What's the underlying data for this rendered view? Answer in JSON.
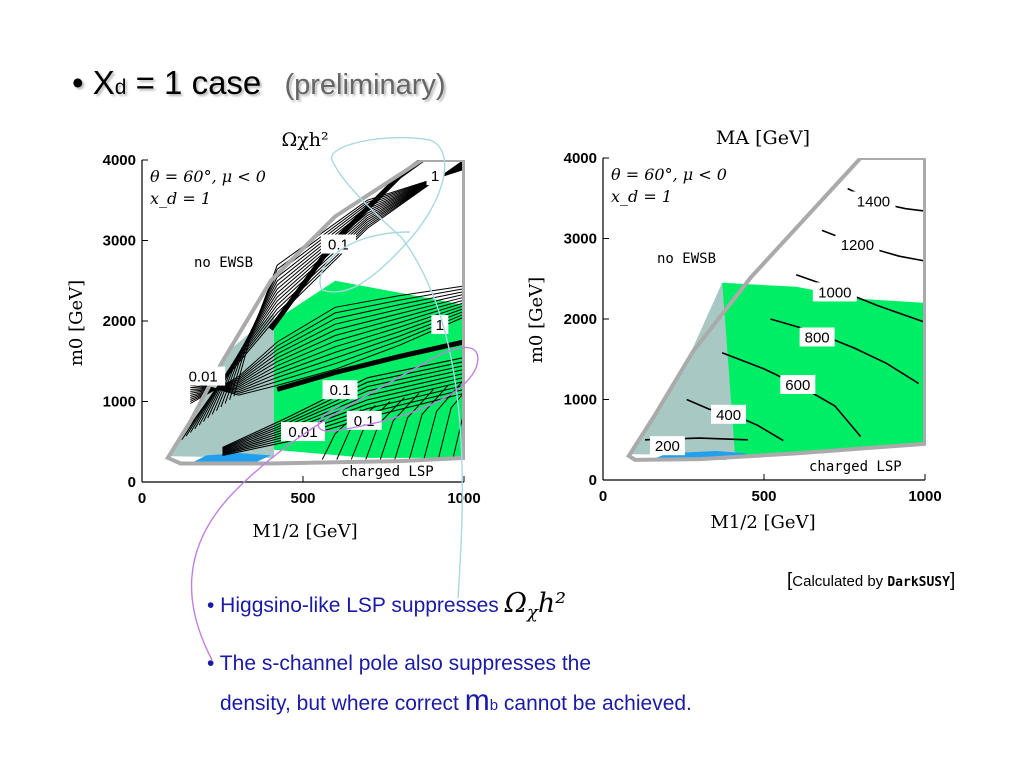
{
  "slide": {
    "bullet_char": "•",
    "title_main": "X",
    "title_sub": "d",
    "title_rest": " = 1 case",
    "title_prelim": "(preliminary)",
    "bullet1_text": "• Higgsino-like LSP suppresses ",
    "bullet1_math": "Ω",
    "bullet1_math_sub": "χ",
    "bullet1_math_rest": "h²",
    "bullet2_line1": "• The s-channel pole also suppresses the",
    "bullet2_line2_a": "density, but where correct ",
    "bullet2_line2_m": "m",
    "bullet2_line2_b": "b",
    "bullet2_line2_c": " cannot be achieved.",
    "calc_note_open": "[",
    "calc_note_text": "Calculated by ",
    "calc_note_code": "DarkSUSY",
    "calc_note_close": "]"
  },
  "colors": {
    "green_region": "#00ee66",
    "grey_region": "#a8c8c4",
    "blue_region": "#22a0ee",
    "boundary_grey": "#aaaaaa",
    "cyan_callout": "#a8d8e0",
    "purple_callout": "#c080e0",
    "bullet_blue": "#1a1aa6"
  },
  "chart_data": [
    {
      "type": "contour",
      "title": "Ωχh²",
      "xlabel": "M1/2 [GeV]",
      "ylabel": "m0 [GeV]",
      "xlim": [
        0,
        1000
      ],
      "ylim": [
        0,
        4000
      ],
      "x_ticks": [
        "0",
        "500",
        "1000"
      ],
      "y_ticks": [
        "0",
        "1000",
        "2000",
        "3000",
        "4000"
      ],
      "annotation_params": "θ = 60°, μ < 0",
      "annotation_xd": "x_d = 1",
      "region_labels": {
        "no_ewsb": "no EWSB",
        "charged_lsp": "charged LSP"
      },
      "contour_labels": [
        {
          "label": "1",
          "x": 910,
          "y": 3800
        },
        {
          "label": "0.1",
          "x": 610,
          "y": 2950
        },
        {
          "label": "1",
          "x": 925,
          "y": 1950
        },
        {
          "label": "0.01",
          "x": 190,
          "y": 1310
        },
        {
          "label": "0.1",
          "x": 615,
          "y": 1140
        },
        {
          "label": "0.1",
          "x": 690,
          "y": 760
        },
        {
          "label": "0.01",
          "x": 500,
          "y": 620
        }
      ],
      "boundary": [
        [
          80,
          300
        ],
        [
          150,
          750
        ],
        [
          250,
          1500
        ],
        [
          400,
          2500
        ],
        [
          600,
          3300
        ],
        [
          870,
          4000
        ],
        [
          1000,
          4000
        ],
        [
          1000,
          300
        ],
        [
          800,
          260
        ],
        [
          400,
          230
        ],
        [
          120,
          230
        ]
      ],
      "green_region": [
        [
          410,
          400
        ],
        [
          410,
          2000
        ],
        [
          600,
          2500
        ],
        [
          800,
          2350
        ],
        [
          1000,
          2200
        ],
        [
          1000,
          300
        ],
        [
          700,
          300
        ]
      ],
      "grey_region": [
        [
          90,
          320
        ],
        [
          160,
          800
        ],
        [
          260,
          1600
        ],
        [
          410,
          2100
        ],
        [
          410,
          300
        ]
      ],
      "blue_region": [
        [
          160,
          250
        ],
        [
          200,
          330
        ],
        [
          300,
          360
        ],
        [
          400,
          330
        ],
        [
          350,
          240
        ]
      ]
    },
    {
      "type": "contour",
      "title": "MA [GeV]",
      "xlabel": "M1/2 [GeV]",
      "ylabel": "m0 [GeV]",
      "xlim": [
        0,
        1000
      ],
      "ylim": [
        0,
        4000
      ],
      "x_ticks": [
        "0",
        "500",
        "1000"
      ],
      "y_ticks": [
        "0",
        "1000",
        "2000",
        "3000",
        "4000"
      ],
      "annotation_params": "θ = 60°, μ < 0",
      "annotation_xd": "x_d = 1",
      "region_labels": {
        "no_ewsb": "no EWSB",
        "charged_lsp": "charged LSP"
      },
      "contour_labels": [
        {
          "label": "1400",
          "x": 840,
          "y": 3460
        },
        {
          "label": "1200",
          "x": 790,
          "y": 2920
        },
        {
          "label": "1000",
          "x": 720,
          "y": 2330
        },
        {
          "label": "800",
          "x": 665,
          "y": 1770
        },
        {
          "label": "600",
          "x": 605,
          "y": 1180
        },
        {
          "label": "400",
          "x": 390,
          "y": 810
        },
        {
          "label": "200",
          "x": 200,
          "y": 420
        }
      ],
      "boundary": [
        [
          80,
          300
        ],
        [
          160,
          800
        ],
        [
          280,
          1600
        ],
        [
          460,
          2520
        ],
        [
          800,
          4000
        ],
        [
          1000,
          4000
        ],
        [
          1000,
          450
        ],
        [
          600,
          330
        ],
        [
          300,
          260
        ],
        [
          100,
          250
        ]
      ],
      "green_region": [
        [
          370,
          2450
        ],
        [
          600,
          2400
        ],
        [
          800,
          2250
        ],
        [
          1000,
          2200
        ],
        [
          1000,
          450
        ],
        [
          600,
          330
        ],
        [
          410,
          300
        ]
      ],
      "grey_region": [
        [
          90,
          320
        ],
        [
          160,
          820
        ],
        [
          280,
          1650
        ],
        [
          370,
          2450
        ],
        [
          410,
          300
        ]
      ],
      "blue_region": [
        [
          150,
          250
        ],
        [
          200,
          330
        ],
        [
          350,
          360
        ],
        [
          450,
          330
        ],
        [
          380,
          250
        ]
      ],
      "contours": [
        {
          "value": 200,
          "points": [
            [
              130,
              500
            ],
            [
              300,
              520
            ],
            [
              450,
              500
            ]
          ]
        },
        {
          "value": 400,
          "points": [
            [
              260,
              1000
            ],
            [
              330,
              880
            ],
            [
              400,
              820
            ],
            [
              480,
              680
            ],
            [
              560,
              490
            ]
          ]
        },
        {
          "value": 600,
          "points": [
            [
              370,
              1580
            ],
            [
              500,
              1380
            ],
            [
              620,
              1150
            ],
            [
              720,
              920
            ],
            [
              800,
              540
            ]
          ]
        },
        {
          "value": 800,
          "points": [
            [
              520,
              2000
            ],
            [
              650,
              1850
            ],
            [
              780,
              1640
            ],
            [
              880,
              1450
            ],
            [
              980,
              1200
            ]
          ]
        },
        {
          "value": 1000,
          "points": [
            [
              600,
              2550
            ],
            [
              720,
              2380
            ],
            [
              850,
              2170
            ],
            [
              1000,
              1960
            ]
          ]
        },
        {
          "value": 1200,
          "points": [
            [
              680,
              3100
            ],
            [
              790,
              2930
            ],
            [
              920,
              2780
            ],
            [
              1000,
              2720
            ]
          ]
        },
        {
          "value": 1400,
          "points": [
            [
              760,
              3620
            ],
            [
              850,
              3450
            ],
            [
              940,
              3370
            ],
            [
              1000,
              3340
            ]
          ]
        }
      ]
    }
  ]
}
